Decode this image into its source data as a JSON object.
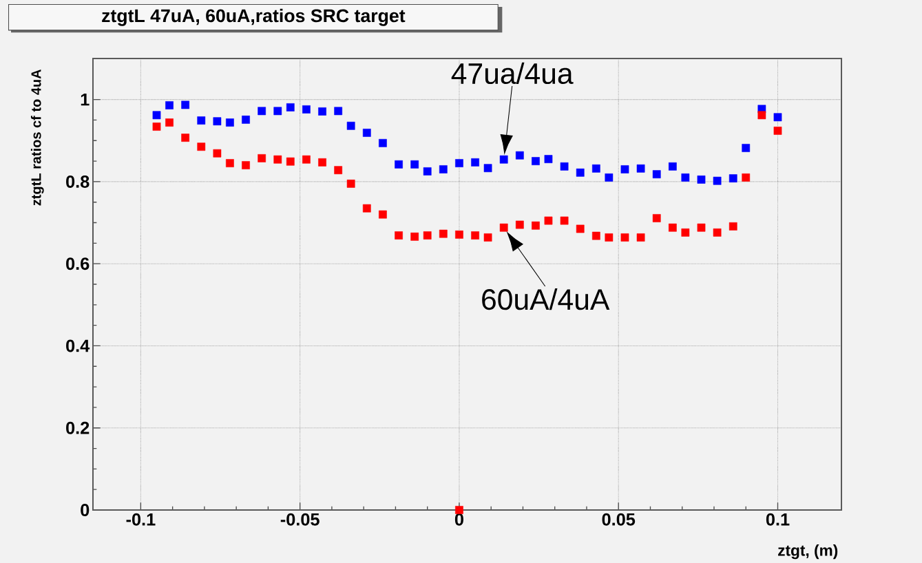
{
  "chart_data": {
    "type": "scatter",
    "title": "ztgtL 47uA, 60uA,ratios SRC target",
    "xlabel": "ztgt, (m)",
    "ylabel": "ztgtL ratios cf to 4uA",
    "x": [
      -0.095,
      -0.091,
      -0.086,
      -0.081,
      -0.076,
      -0.072,
      -0.067,
      -0.062,
      -0.057,
      -0.053,
      -0.048,
      -0.043,
      -0.038,
      -0.034,
      -0.029,
      -0.024,
      -0.019,
      -0.014,
      -0.01,
      -0.005,
      0.0,
      0.005,
      0.009,
      0.014,
      0.019,
      0.024,
      0.028,
      0.033,
      0.038,
      0.043,
      0.047,
      0.052,
      0.057,
      0.062,
      0.067,
      0.071,
      0.076,
      0.081,
      0.086,
      0.09,
      0.095,
      0.1
    ],
    "series": [
      {
        "color": "#0000ff",
        "values": [
          0.962,
          0.986,
          0.987,
          0.949,
          0.947,
          0.944,
          0.951,
          0.972,
          0.972,
          0.981,
          0.976,
          0.971,
          0.972,
          0.936,
          0.919,
          0.894,
          0.842,
          0.842,
          0.825,
          0.83,
          0.845,
          0.847,
          0.833,
          0.854,
          0.864,
          0.85,
          0.855,
          0.837,
          0.822,
          0.832,
          0.81,
          0.83,
          0.832,
          0.818,
          0.837,
          0.81,
          0.805,
          0.802,
          0.808,
          0.882,
          0.977,
          0.957
        ]
      },
      {
        "color": "#ff0000",
        "x": [
          -0.095,
          -0.091,
          -0.086,
          -0.081,
          -0.076,
          -0.072,
          -0.067,
          -0.062,
          -0.057,
          -0.053,
          -0.048,
          -0.043,
          -0.038,
          -0.034,
          -0.029,
          -0.024,
          -0.019,
          -0.014,
          -0.01,
          -0.005,
          0.0,
          0.005,
          0.009,
          0.014,
          0.019,
          0.024,
          0.028,
          0.033,
          0.038,
          0.043,
          0.047,
          0.052,
          0.057,
          0.062,
          0.067,
          0.071,
          0.076,
          0.081,
          0.086,
          0.09,
          0.095,
          0.1,
          0.0
        ],
        "values": [
          0.934,
          0.944,
          0.907,
          0.885,
          0.869,
          0.845,
          0.84,
          0.857,
          0.854,
          0.849,
          0.854,
          0.847,
          0.828,
          0.795,
          0.735,
          0.72,
          0.669,
          0.666,
          0.669,
          0.673,
          0.671,
          0.669,
          0.664,
          0.688,
          0.695,
          0.693,
          0.705,
          0.705,
          0.685,
          0.668,
          0.664,
          0.664,
          0.664,
          0.711,
          0.688,
          0.676,
          0.688,
          0.676,
          0.691,
          0.81,
          0.962,
          0.924,
          0
        ]
      }
    ],
    "annotations": [
      {
        "text": "47ua/4ua",
        "x": 0.014,
        "y": 0.854
      },
      {
        "text": "60uA/4uA",
        "x": 0.014,
        "y": 0.688
      }
    ],
    "xlim": [
      -0.115,
      0.12
    ],
    "ylim": [
      0,
      1.1
    ],
    "xticks": [
      -0.1,
      -0.05,
      0,
      0.05,
      0.1
    ],
    "yticks": [
      0,
      0.2,
      0.4,
      0.6,
      0.8,
      1
    ],
    "grid": true,
    "marker": "square"
  }
}
